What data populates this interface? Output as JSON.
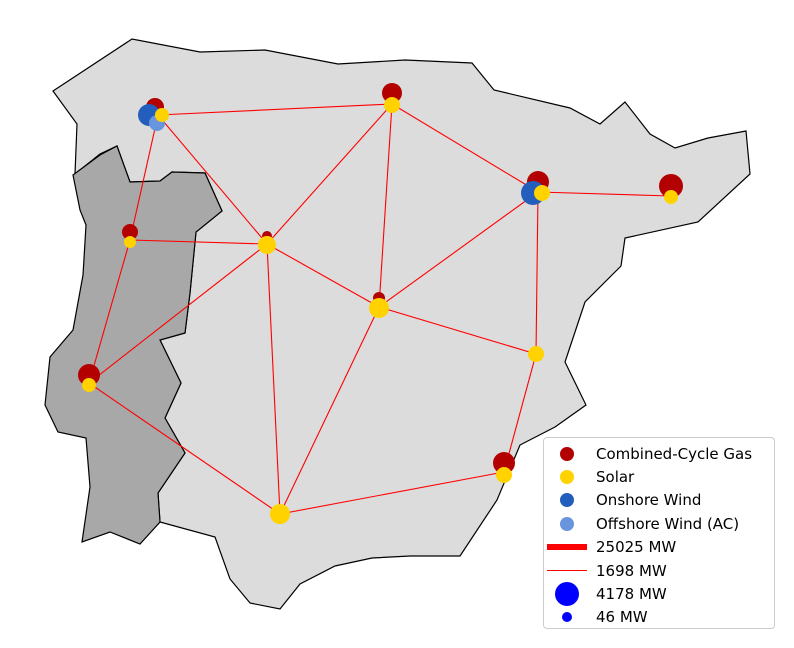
{
  "regions": [
    {
      "name": "spain",
      "fill": "#dcdcdc"
    },
    {
      "name": "portugal",
      "fill": "#a8a8a8"
    }
  ],
  "colors": {
    "lines": "#ff0000",
    "border": "#000000",
    "Combined-Cycle Gas": "#b30000",
    "Solar": "#ffd200",
    "Onshore Wind": "#235ebc",
    "Offshore Wind (AC)": "#6895dd"
  },
  "legend": {
    "carriers": [
      {
        "label": "Combined-Cycle Gas",
        "color": "#b30000"
      },
      {
        "label": "Solar",
        "color": "#ffd200"
      },
      {
        "label": "Onshore Wind",
        "color": "#235ebc"
      },
      {
        "label": "Offshore Wind (AC)",
        "color": "#6895dd"
      }
    ],
    "line_sizes": [
      {
        "label": "25025 MW",
        "value": 25025
      },
      {
        "label": "1698 MW",
        "value": 1698
      }
    ],
    "bus_sizes": [
      {
        "label": "4178 MW",
        "value": 4178
      },
      {
        "label": "46 MW",
        "value": 46
      }
    ]
  }
}
